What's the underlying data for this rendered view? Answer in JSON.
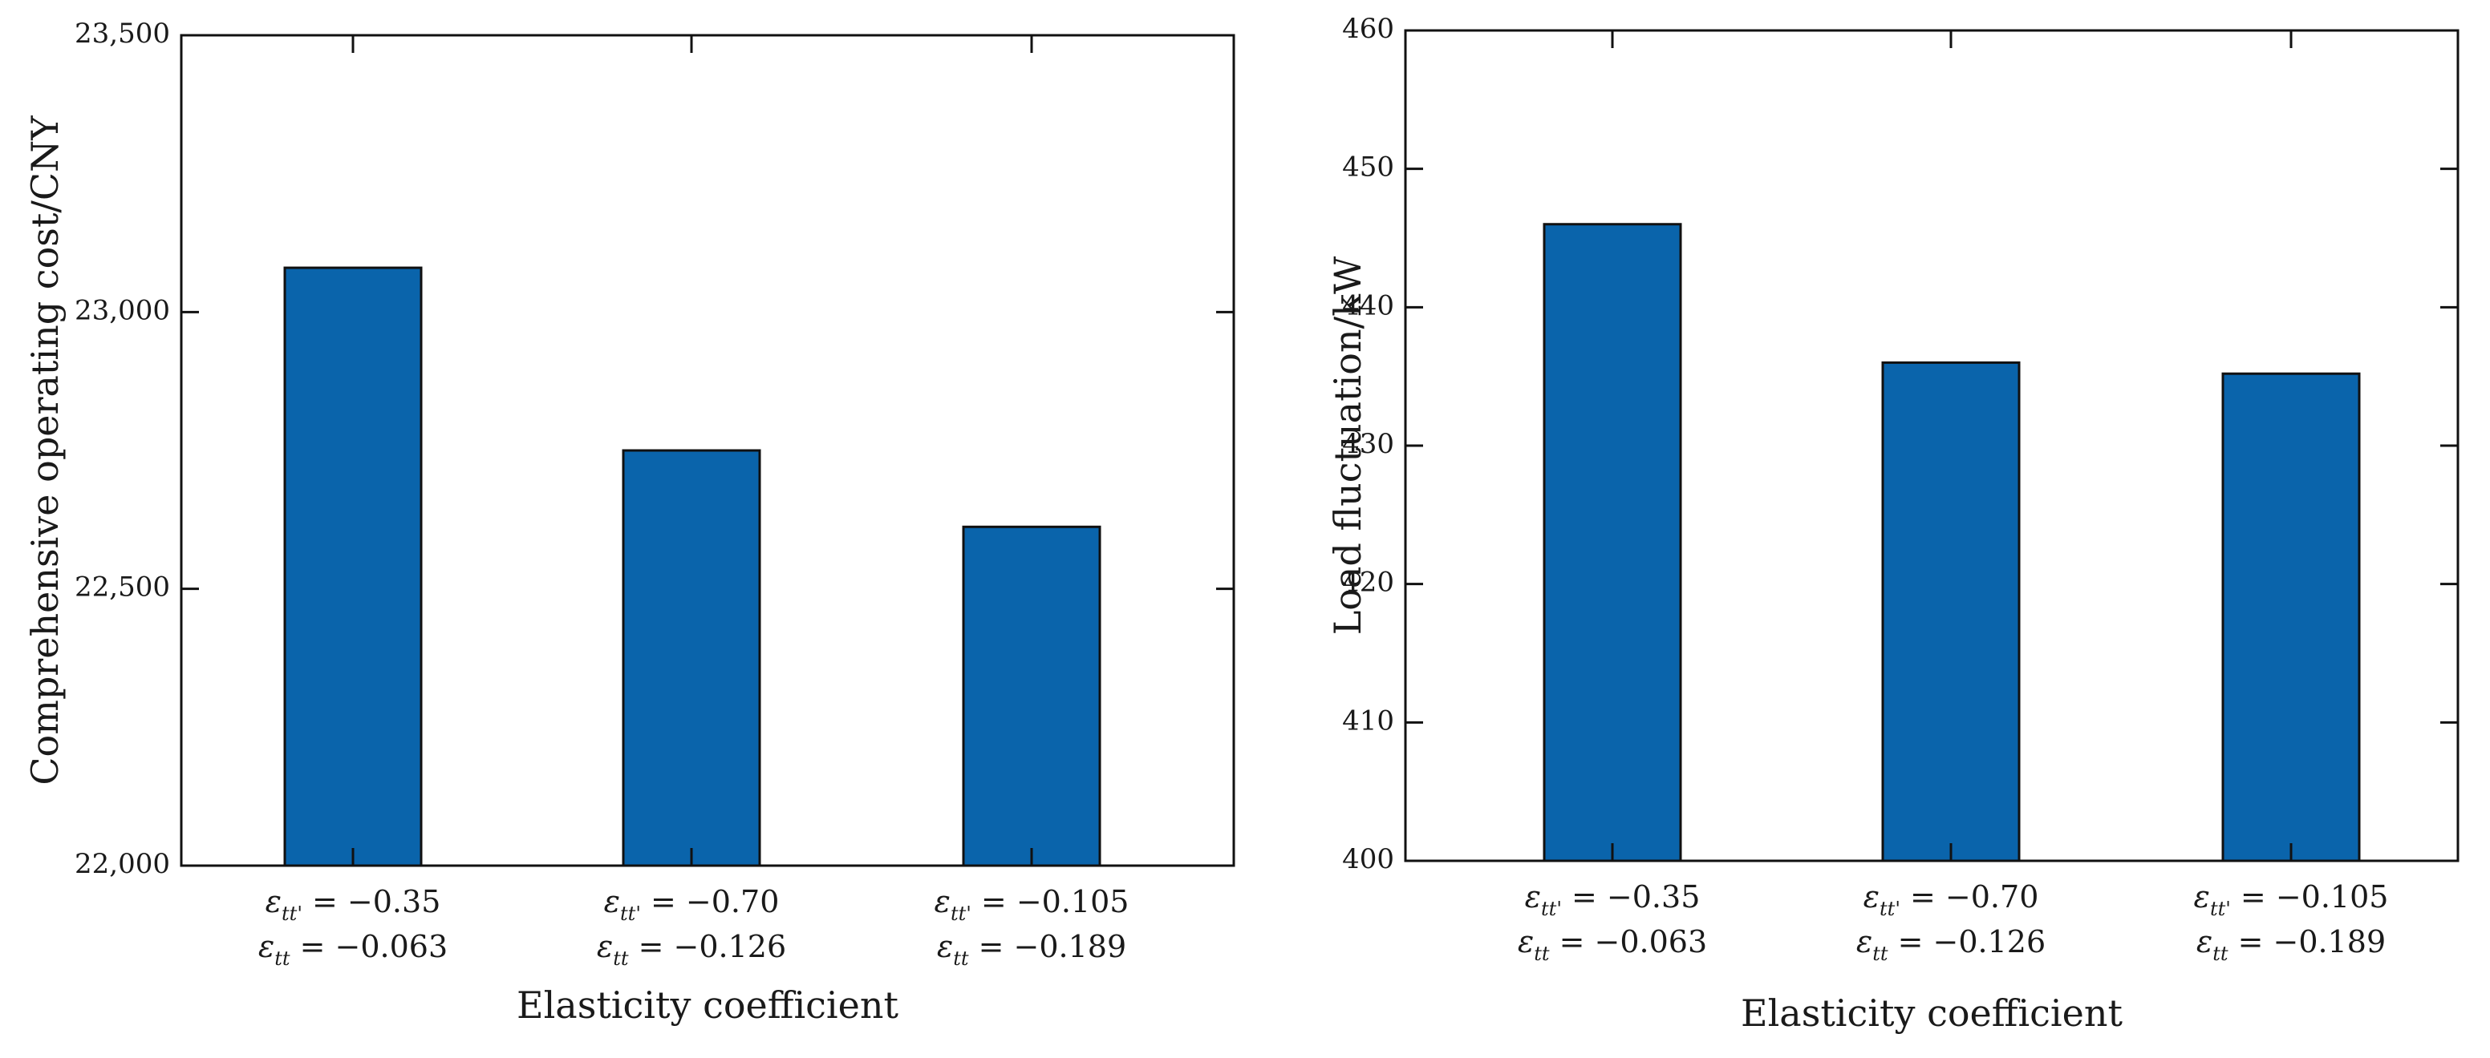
{
  "chart_data": [
    {
      "type": "bar",
      "title": "",
      "xlabel": "Elasticity coefficient",
      "ylabel": "Comprehensive operating cost/CNY",
      "ylim": [
        22000,
        23500
      ],
      "yticks": [
        "22,000",
        "22,500",
        "23,000",
        "23,500"
      ],
      "ytick_values": [
        22000,
        22500,
        23000,
        23500
      ],
      "categories": [
        {
          "line1": "= −0.35",
          "line2": "= −0.063"
        },
        {
          "line1": "= −0.70",
          "line2": "= −0.126"
        },
        {
          "line1": "= −0.105",
          "line2": "= −0.189"
        }
      ],
      "symbol": "ε",
      "sub1": "tt'",
      "sub2": "tt",
      "values": [
        23080,
        22750,
        22612
      ],
      "bar_color": "#0a64ab",
      "grid": false
    },
    {
      "type": "bar",
      "title": "",
      "xlabel": "Elasticity coefficient",
      "ylabel": "Load fluctuation/kW",
      "ylim": [
        400,
        460
      ],
      "yticks": [
        "400",
        "410",
        "420",
        "430",
        "440",
        "450",
        "460"
      ],
      "ytick_values": [
        400,
        410,
        420,
        430,
        440,
        450,
        460
      ],
      "categories": [
        {
          "line1": "= −0.35",
          "line2": "= −0.063"
        },
        {
          "line1": "= −0.70",
          "line2": "= −0.126"
        },
        {
          "line1": "= −0.105",
          "line2": "= −0.189"
        }
      ],
      "symbol": "ε",
      "sub1": "tt'",
      "sub2": "tt",
      "values": [
        446,
        436,
        435.2
      ],
      "bar_color": "#0a64ab",
      "grid": false
    }
  ]
}
